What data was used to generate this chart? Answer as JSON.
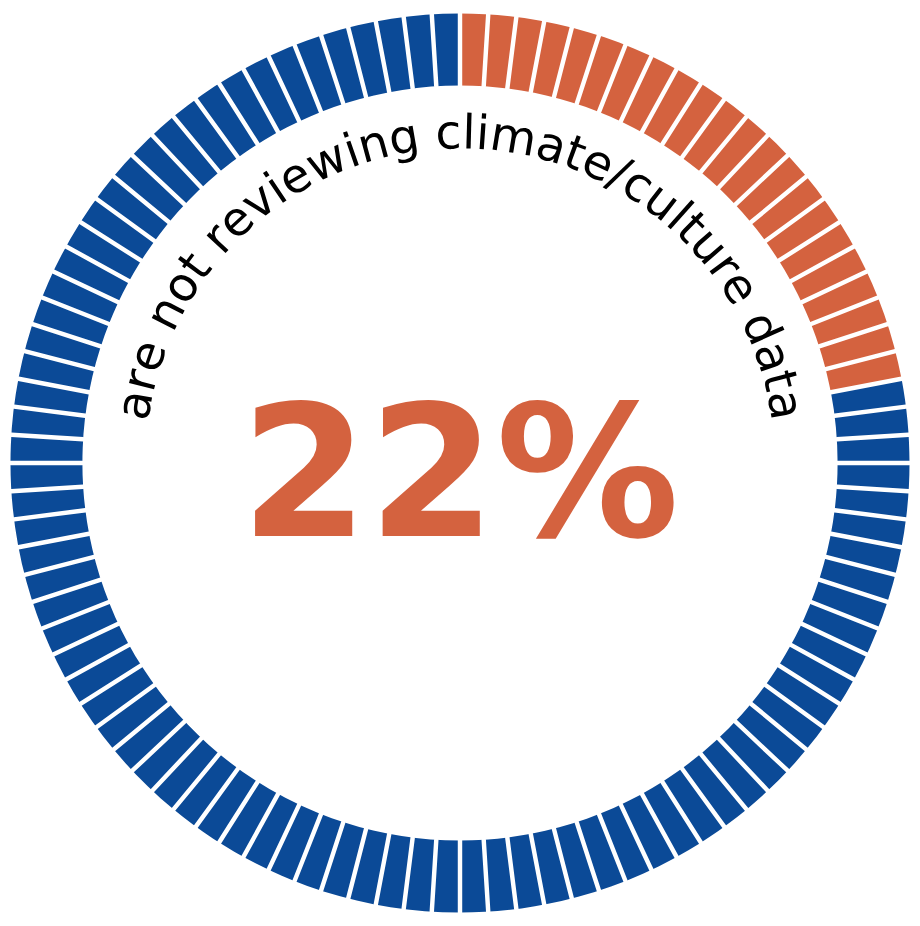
{
  "chart_data": {
    "type": "donut",
    "categories": [
      null,
      null
    ],
    "values": [
      22,
      78
    ],
    "colors": [
      "#d4623f",
      "#0b4a97"
    ],
    "annotations": [
      "are not reviewing climate/culture data",
      "22%"
    ]
  }
}
